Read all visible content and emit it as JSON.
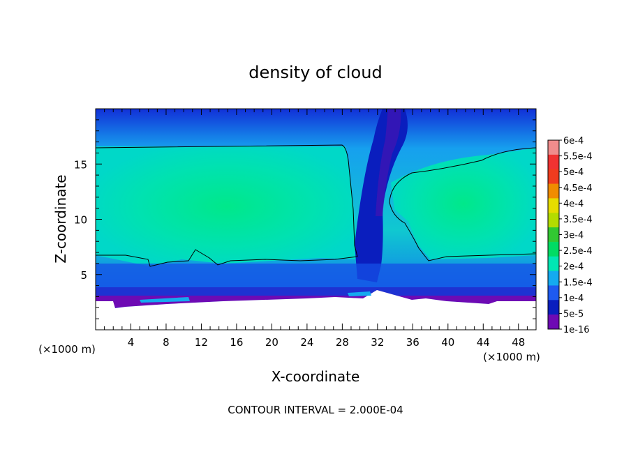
{
  "chart_data": {
    "type": "heatmap",
    "title": "density of cloud",
    "xlabel": "X-coordinate",
    "ylabel": "Z-coordinate",
    "x_unit_label": "(×1000 m)",
    "footer": "CONTOUR INTERVAL = 2.000E-04",
    "xlim": [
      0,
      50
    ],
    "ylim": [
      0,
      20
    ],
    "x_ticks": [
      4,
      8,
      12,
      16,
      20,
      24,
      28,
      32,
      36,
      40,
      44,
      48
    ],
    "y_ticks": [
      5,
      10,
      15
    ],
    "grid": false,
    "legend_placement": "right",
    "colorbar": {
      "labels": [
        "6e-4",
        "5.5e-4",
        "5e-4",
        "4.5e-4",
        "4e-4",
        "3.5e-4",
        "3e-4",
        "2.5e-4",
        "2e-4",
        "1.5e-4",
        "1e-4",
        "5e-5",
        "1e-16"
      ],
      "colors": [
        "#f08c8c",
        "#f03232",
        "#f03c1e",
        "#f08c00",
        "#e6dc00",
        "#b4dc00",
        "#32c832",
        "#00dc64",
        "#00e6b4",
        "#14aaf0",
        "#1e5af0",
        "#0a1ebe",
        "#6e0ab4"
      ]
    },
    "features": {
      "cloud_layer_z_range": [
        6.5,
        16.5
      ],
      "contour_level": 0.0002,
      "gap_x_range": [
        29,
        37
      ],
      "core_value": 0.00025,
      "surface_floor_z": 2.8
    }
  }
}
